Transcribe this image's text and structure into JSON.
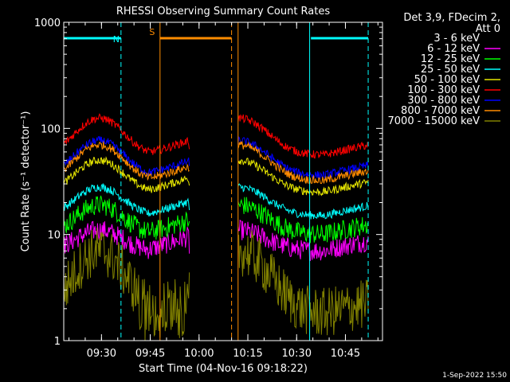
{
  "chart_data": {
    "type": "line",
    "title": "RHESSI Observing Summary Count Rates",
    "xlabel": "Start Time (04-Nov-16 09:18:22)",
    "ylabel": "Count Rate (s⁻¹ detector⁻¹)",
    "yscale": "log",
    "ylim": [
      1,
      1000
    ],
    "xlim_minutes": [
      0,
      98
    ],
    "x_ticks": [
      {
        "label": "09:30",
        "t": 11.6
      },
      {
        "label": "09:45",
        "t": 26.6
      },
      {
        "label": "10:00",
        "t": 41.6
      },
      {
        "label": "10:15",
        "t": 56.6
      },
      {
        "label": "10:30",
        "t": 71.6
      },
      {
        "label": "10:45",
        "t": 86.6
      }
    ],
    "y_ticks": [
      {
        "label": "1000",
        "v": 1000
      },
      {
        "label": "100",
        "v": 100
      },
      {
        "label": "10",
        "v": 10
      },
      {
        "label": "1",
        "v": 1
      }
    ],
    "legend_header": [
      "Det 3,9, FDecim 2,",
      "Att 0"
    ],
    "legend_position": "right",
    "flags": [
      {
        "label": "N",
        "color": "#00ffff",
        "segments": [
          [
            0,
            17.6
          ],
          [
            76,
            93.6
          ]
        ]
      },
      {
        "label": "S",
        "color": "#ff8c00",
        "segments": [
          [
            29.6,
            51.6
          ]
        ]
      }
    ],
    "markers": {
      "cyan_solid": [
        0,
        75.6
      ],
      "cyan_dashed": [
        17.6,
        93.6
      ],
      "orange_solid": [
        29.6,
        53.6
      ],
      "orange_dashed": [
        51.6
      ]
    },
    "segments_minutes": [
      [
        0,
        38.6
      ],
      [
        53.6,
        93.6
      ]
    ],
    "series": [
      {
        "name": "3 - 6 keV",
        "color": "#000000",
        "peak": 12,
        "base": 9
      },
      {
        "name": "6 - 12 keV",
        "color": "#ff00ff",
        "peak": 11,
        "base": 7
      },
      {
        "name": "12 - 25 keV",
        "color": "#00ff00",
        "peak": 19,
        "base": 10
      },
      {
        "name": "25 - 50 keV",
        "color": "#00ffff",
        "peak": 28,
        "base": 15
      },
      {
        "name": "50 - 100 keV",
        "color": "#e6e600",
        "peak": 50,
        "base": 25
      },
      {
        "name": "100 - 300 keV",
        "color": "#ff0000",
        "peak": 125,
        "base": 56
      },
      {
        "name": "300 - 800 keV",
        "color": "#0000ff",
        "peak": 77,
        "base": 36
      },
      {
        "name": "800 - 7000 keV",
        "color": "#ff8c00",
        "peak": 70,
        "base": 32
      },
      {
        "name": "7000 - 15000 keV",
        "color": "#808000",
        "peak": 7,
        "base": 1.8
      }
    ]
  },
  "footer": {
    "timestamp": "1-Sep-2022 15:50"
  }
}
